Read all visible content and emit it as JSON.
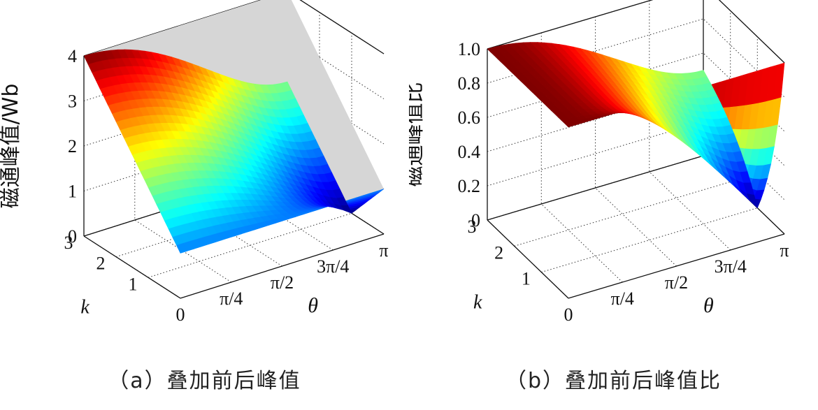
{
  "figure": {
    "panels": [
      {
        "caption": "（a）叠加前后峰值",
        "zlabel": "磁通峰值/Wb",
        "xlabel": "θ",
        "ylabel": "k"
      },
      {
        "caption": "（b）叠加前后峰值比",
        "zlabel": "磁通峰值比",
        "xlabel": "θ",
        "ylabel": "k"
      }
    ]
  },
  "chart_data": [
    {
      "type": "surface",
      "xlabel": "θ",
      "ylabel": "k",
      "zlabel": "磁通峰值/Wb",
      "xlim": [
        0,
        3.14159
      ],
      "ylim": [
        0,
        3
      ],
      "zlim": [
        0,
        4
      ],
      "x_ticks": [
        "0",
        "π/4",
        "π/2",
        "3π/4",
        "π"
      ],
      "y_ticks": [
        "1",
        "2",
        "3"
      ],
      "z_ticks": [
        "0",
        "1",
        "2",
        "3",
        "4"
      ],
      "grid": true,
      "colormap": "jet",
      "reference_plane": {
        "color": "#d6d6d6",
        "z_at_k3_theta0": 4,
        "z_at_k0": 1
      },
      "surface": {
        "formula": "sqrt(1 + k^2 + 2k·cos θ)"
      }
    },
    {
      "type": "surface",
      "xlabel": "θ",
      "ylabel": "k",
      "zlabel": "磁通峰值比",
      "xlim": [
        0,
        3.14159
      ],
      "ylim": [
        0,
        3
      ],
      "zlim": [
        0,
        1
      ],
      "x_ticks": [
        "0",
        "π/4",
        "π/2",
        "3π/4",
        "π"
      ],
      "y_ticks": [
        "1",
        "2",
        "3"
      ],
      "z_ticks": [
        "0",
        "0.2",
        "0.4",
        "0.6",
        "0.8",
        "1.0"
      ],
      "grid": true,
      "colormap": "jet",
      "surface": {
        "formula": "sqrt(1 + k^2 + 2k·cos θ) / (1 + k)"
      }
    }
  ]
}
